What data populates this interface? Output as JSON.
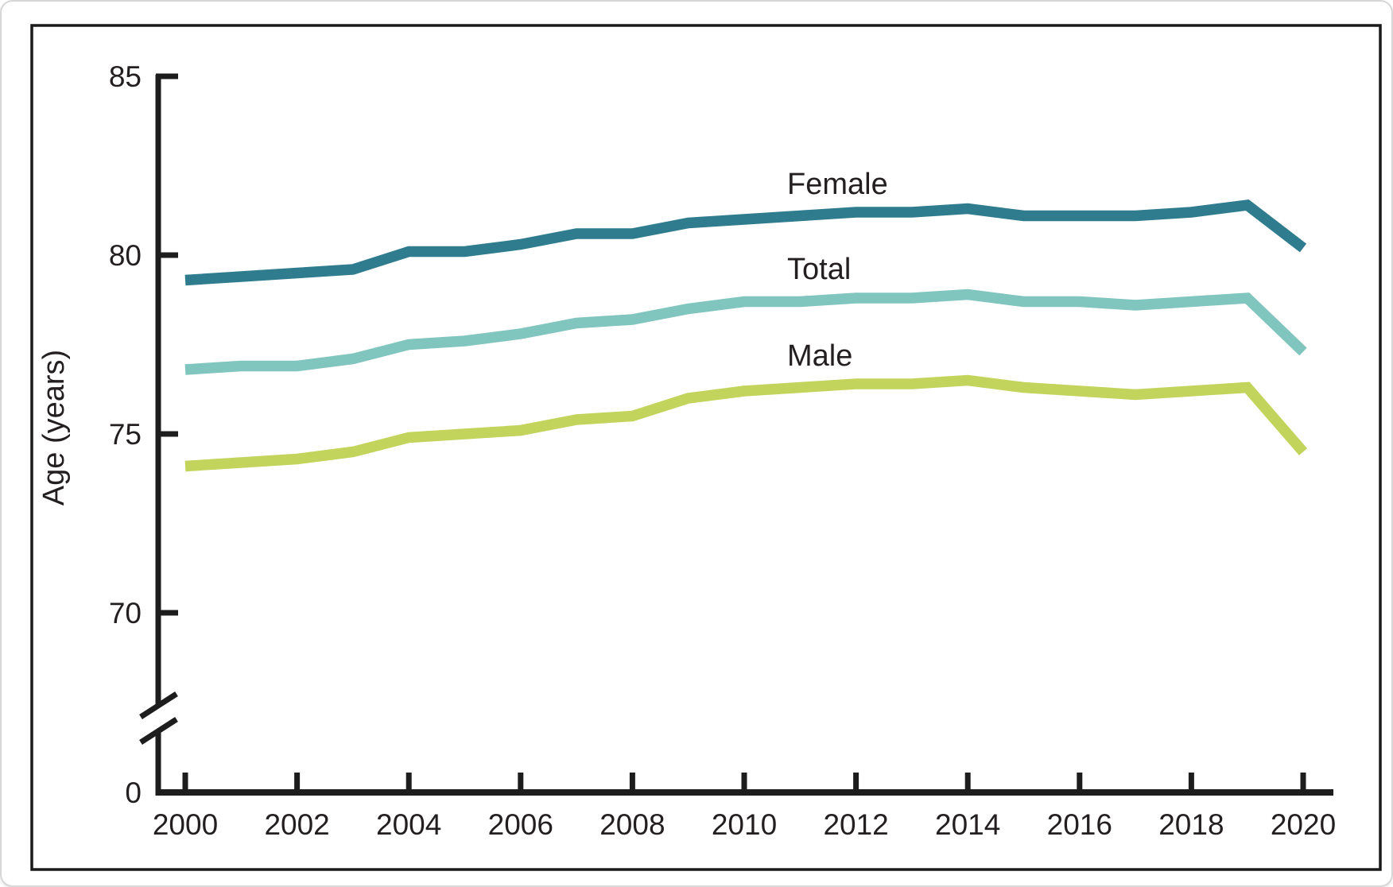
{
  "chart_data": {
    "type": "line",
    "title": "",
    "xlabel": "",
    "ylabel": "Age (years)",
    "x": [
      2000,
      2001,
      2002,
      2003,
      2004,
      2005,
      2006,
      2007,
      2008,
      2009,
      2010,
      2011,
      2012,
      2013,
      2014,
      2015,
      2016,
      2017,
      2018,
      2019,
      2020
    ],
    "series": [
      {
        "name": "Female",
        "color": "#2F7C8E",
        "values": [
          79.3,
          79.4,
          79.5,
          79.6,
          80.1,
          80.1,
          80.3,
          80.6,
          80.6,
          80.9,
          81.0,
          81.1,
          81.2,
          81.2,
          81.3,
          81.1,
          81.1,
          81.1,
          81.2,
          81.4,
          80.2
        ]
      },
      {
        "name": "Total",
        "color": "#80C5BE",
        "values": [
          76.8,
          76.9,
          76.9,
          77.1,
          77.5,
          77.6,
          77.8,
          78.1,
          78.2,
          78.5,
          78.7,
          78.7,
          78.8,
          78.8,
          78.9,
          78.7,
          78.7,
          78.6,
          78.7,
          78.8,
          77.3
        ]
      },
      {
        "name": "Male",
        "color": "#C3D45C",
        "values": [
          74.1,
          74.2,
          74.3,
          74.5,
          74.9,
          75.0,
          75.1,
          75.4,
          75.5,
          76.0,
          76.2,
          76.3,
          76.4,
          76.4,
          76.5,
          76.3,
          76.2,
          76.1,
          76.2,
          76.3,
          74.5
        ]
      }
    ],
    "y_ticks": [
      {
        "label": "85",
        "value": 85
      },
      {
        "label": "80",
        "value": 80
      },
      {
        "label": "75",
        "value": 75
      },
      {
        "label": "70",
        "value": 70
      }
    ],
    "origin_label": "0",
    "x_ticks": [
      2000,
      2002,
      2004,
      2006,
      2008,
      2010,
      2012,
      2014,
      2016,
      2018,
      2020
    ],
    "axis_break": true,
    "grid": false,
    "legend_position": "inline-right-of-lines",
    "ylim_shown": [
      70,
      85
    ]
  },
  "colors": {
    "axis": "#1d1d1d",
    "text": "#231f20",
    "card_border": "#d7d7d7",
    "frame": "#1a1a1a",
    "background": "#ffffff"
  }
}
